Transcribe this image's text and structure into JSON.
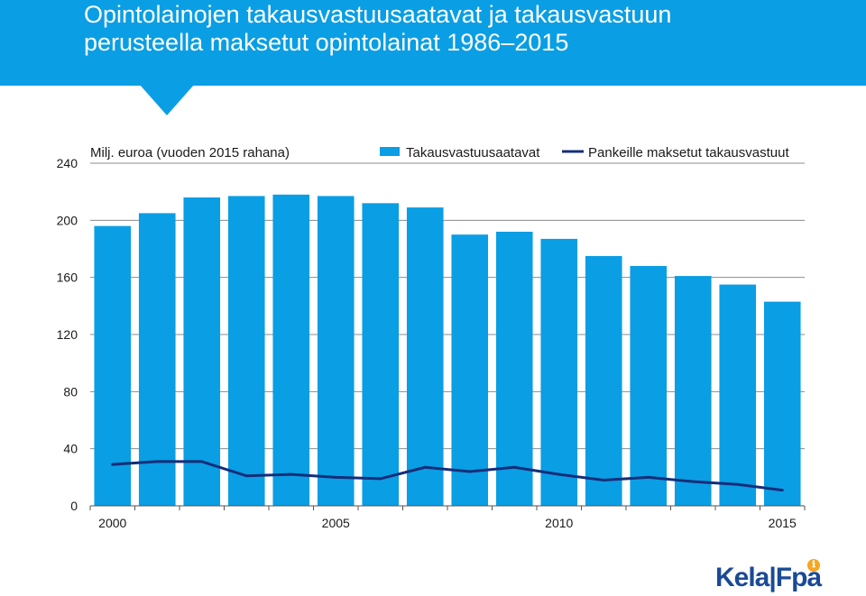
{
  "header": {
    "title_line1": "Opintolainojen takausvastuusaatavat ja takausvastuun",
    "title_line2": "perusteella maksetut opintolainat 1986–2015"
  },
  "colors": {
    "header": "#0a9ee4",
    "bar": "#0a9ee4",
    "line": "#152e7a",
    "logo": "#1a4a96",
    "badge": "#f6a623"
  },
  "chart_data": {
    "type": "bar",
    "unit_label": "Milj. euroa (vuoden 2015 rahana)",
    "x_tick_labels": [
      "2000",
      "2005",
      "2010",
      "2015"
    ],
    "categories": [
      "2000",
      "2001",
      "2002",
      "2003",
      "2004",
      "2005",
      "2006",
      "2007",
      "2008",
      "2009",
      "2010",
      "2011",
      "2012",
      "2013",
      "2014",
      "2015"
    ],
    "ylim": [
      0,
      240
    ],
    "yticks": [
      0,
      40,
      80,
      120,
      160,
      200,
      240
    ],
    "grid": true,
    "legend_position": "top",
    "series": [
      {
        "name": "Takausvastuusaatavat",
        "type": "bar",
        "values": [
          196,
          205,
          216,
          217,
          218,
          217,
          212,
          209,
          190,
          192,
          187,
          175,
          168,
          161,
          155,
          143
        ]
      },
      {
        "name": "Pankeille maksetut takausvastuut",
        "type": "line",
        "values": [
          29,
          31,
          31,
          21,
          22,
          20,
          19,
          27,
          24,
          27,
          22,
          18,
          20,
          17,
          15,
          11
        ]
      }
    ]
  },
  "logo": {
    "text": "Kela|Fpa",
    "badge": "ℹ"
  }
}
